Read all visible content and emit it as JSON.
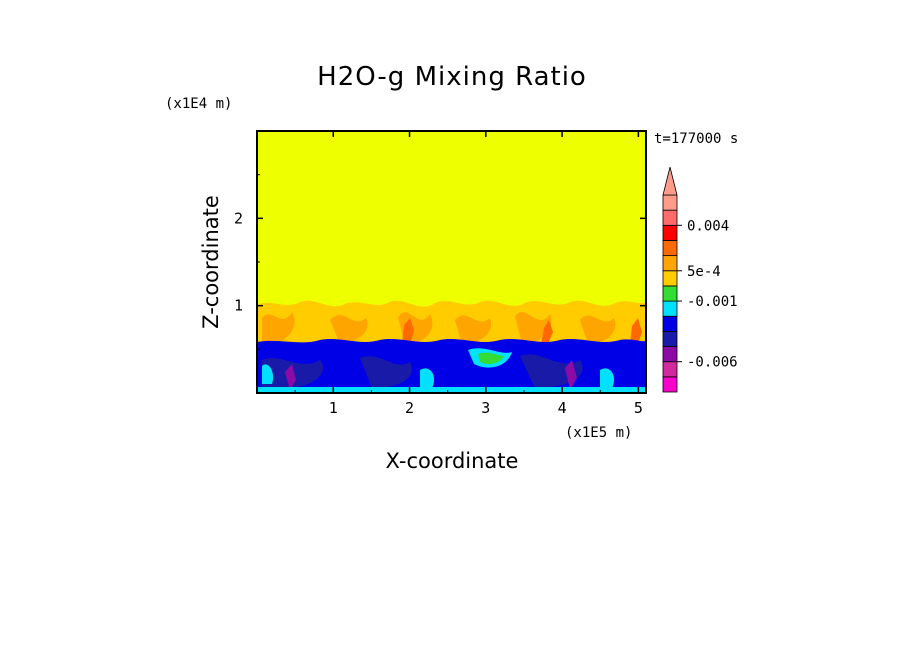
{
  "chart_data": {
    "type": "heatmap",
    "title": "H2O-g Mixing Ratio",
    "xlabel": "X-coordinate",
    "ylabel": "Z-coordinate",
    "x_scale_label": "(x1E5 m)",
    "y_scale_label": "(x1E4 m)",
    "time_label": "t=177000 s",
    "xlim": [
      0,
      5.1
    ],
    "ylim": [
      0,
      3
    ],
    "x_ticks": [
      "1",
      "2",
      "3",
      "4",
      "5"
    ],
    "x_tick_values": [
      1,
      2,
      3,
      4,
      5
    ],
    "y_ticks": [
      "1",
      "2"
    ],
    "y_tick_values": [
      1,
      2
    ],
    "colorbar": {
      "colors": [
        "#ff00cc",
        "#d12a9c",
        "#8c0aa6",
        "#1a1aa8",
        "#0000e6",
        "#00e0ff",
        "#33dd33",
        "#ffcc00",
        "#ffa500",
        "#ff6a00",
        "#ff0000",
        "#ff6a6a",
        "#ff9b8a"
      ],
      "labels": [
        "-0.006",
        "-0.001",
        "5e-4",
        "0.004"
      ],
      "extend": "max"
    },
    "regions": [
      {
        "name": "upper",
        "z_range": [
          1.0,
          3.0
        ],
        "value": "near 0",
        "color": "#eeff00"
      },
      {
        "name": "transition",
        "z_range": [
          0.6,
          1.0
        ],
        "value": "positive (5e-4 to 0.004)",
        "color": "#ffa500"
      },
      {
        "name": "lower",
        "z_range": [
          0.0,
          0.6
        ],
        "value": "negative (-0.006 to -0.001)",
        "color": "#0000e6"
      }
    ]
  }
}
